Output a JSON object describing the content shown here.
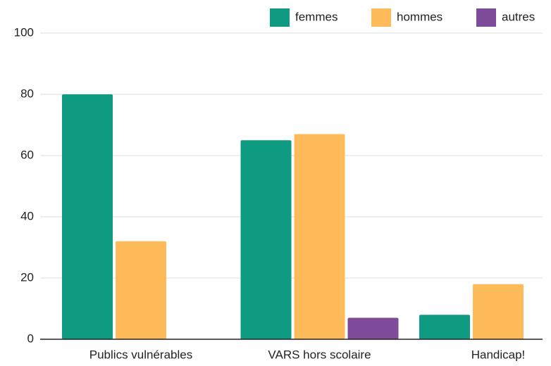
{
  "chart_data": {
    "type": "bar",
    "categories": [
      "Publics vulnérables",
      "VARS hors scolaire",
      "Handicap!"
    ],
    "series": [
      {
        "name": "femmes",
        "color": "#0f9a82",
        "values": [
          80,
          65,
          8
        ]
      },
      {
        "name": "hommes",
        "color": "#ffbb5a",
        "values": [
          32,
          67,
          18
        ]
      },
      {
        "name": "autres",
        "color": "#7e4b9a",
        "values": [
          0,
          7,
          0
        ]
      }
    ],
    "ylim": [
      0,
      100
    ],
    "yticks": [
      0,
      20,
      40,
      60,
      80,
      100
    ],
    "grid": true,
    "legend": "top-right"
  }
}
